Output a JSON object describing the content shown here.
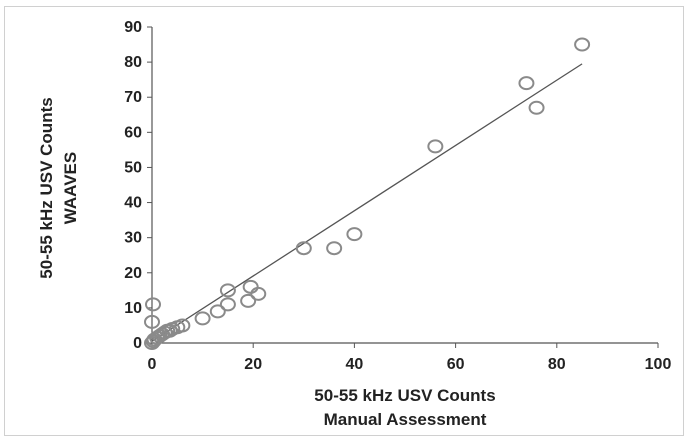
{
  "chart_data": {
    "type": "scatter",
    "title": "",
    "xlabel_lines": [
      "50-55 kHz USV Counts",
      "Manual  Assessment"
    ],
    "ylabel_lines": [
      "50-55 kHz USV Counts",
      "WAAVES"
    ],
    "xlim": [
      0,
      100
    ],
    "ylim": [
      0,
      90
    ],
    "x_ticks": [
      0,
      20,
      40,
      60,
      80,
      100
    ],
    "y_ticks": [
      0,
      10,
      20,
      30,
      40,
      50,
      60,
      70,
      80,
      90
    ],
    "grid": false,
    "legend": "none",
    "marker": "open-circle",
    "colors": {
      "marker": "#8a8a8a",
      "trendline": "#555555",
      "axis": "#555555"
    },
    "points": [
      {
        "x": 0,
        "y": 0
      },
      {
        "x": 0.3,
        "y": 0.5
      },
      {
        "x": 0.5,
        "y": 1
      },
      {
        "x": 1,
        "y": 1.5
      },
      {
        "x": 1.5,
        "y": 2
      },
      {
        "x": 2,
        "y": 2.5
      },
      {
        "x": 2.5,
        "y": 3
      },
      {
        "x": 3,
        "y": 3.5
      },
      {
        "x": 3.5,
        "y": 3.5
      },
      {
        "x": 4,
        "y": 4
      },
      {
        "x": 5,
        "y": 4.5
      },
      {
        "x": 6,
        "y": 5
      },
      {
        "x": 0.2,
        "y": 11
      },
      {
        "x": 0,
        "y": 6
      },
      {
        "x": 10,
        "y": 7
      },
      {
        "x": 13,
        "y": 9
      },
      {
        "x": 15,
        "y": 11
      },
      {
        "x": 15,
        "y": 15
      },
      {
        "x": 19,
        "y": 12
      },
      {
        "x": 19.5,
        "y": 16
      },
      {
        "x": 21,
        "y": 14
      },
      {
        "x": 30,
        "y": 27
      },
      {
        "x": 36,
        "y": 27
      },
      {
        "x": 40,
        "y": 31
      },
      {
        "x": 56,
        "y": 56
      },
      {
        "x": 74,
        "y": 74
      },
      {
        "x": 76,
        "y": 67
      },
      {
        "x": 85,
        "y": 85
      }
    ],
    "trendline": {
      "x": [
        0,
        85
      ],
      "y": [
        0.5,
        79.5
      ]
    }
  }
}
